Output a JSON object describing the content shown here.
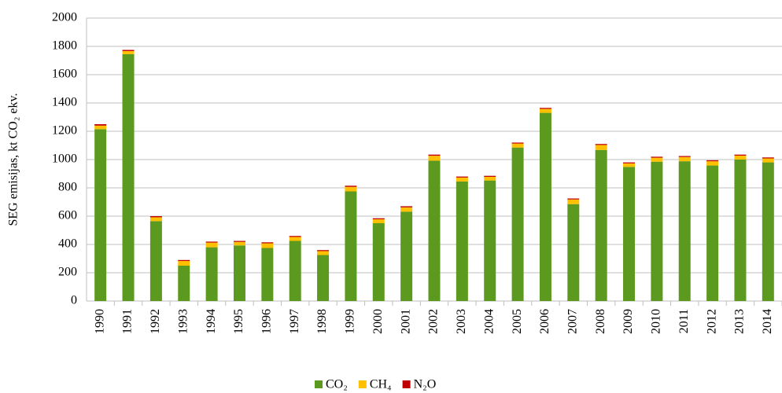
{
  "chart_data": {
    "type": "stacked_bar",
    "y_label": "SEG emisijas, kt CO₂ ekv.",
    "categories": [
      "1990",
      "1991",
      "1992",
      "1993",
      "1994",
      "1995",
      "1996",
      "1997",
      "1998",
      "1999",
      "2000",
      "2001",
      "2002",
      "2003",
      "2004",
      "2005",
      "2006",
      "2007",
      "2008",
      "2009",
      "2010",
      "2011",
      "2012",
      "2013",
      "2014"
    ],
    "series": [
      {
        "name": "CO₂",
        "color": "#5b9a1e",
        "values": [
          1215,
          1745,
          565,
          250,
          380,
          393,
          375,
          425,
          325,
          775,
          550,
          632,
          992,
          845,
          852,
          1085,
          1330,
          685,
          1068,
          948,
          985,
          988,
          958,
          1000,
          980
        ]
      },
      {
        "name": "CH₄",
        "color": "#ffc000",
        "values": [
          25,
          22,
          27,
          33,
          33,
          25,
          33,
          28,
          28,
          32,
          28,
          30,
          35,
          28,
          26,
          28,
          28,
          33,
          35,
          25,
          28,
          30,
          30,
          28,
          28
        ]
      },
      {
        "name": "N₂O",
        "color": "#c00000",
        "values": [
          10,
          8,
          8,
          7,
          7,
          7,
          7,
          7,
          7,
          8,
          7,
          8,
          8,
          7,
          7,
          7,
          7,
          7,
          7,
          7,
          7,
          7,
          7,
          7,
          7
        ]
      }
    ],
    "ylim": [
      0,
      2000
    ],
    "yticks": [
      0,
      200,
      400,
      600,
      800,
      1000,
      1200,
      1400,
      1600,
      1800,
      2000
    ],
    "grid": true
  }
}
